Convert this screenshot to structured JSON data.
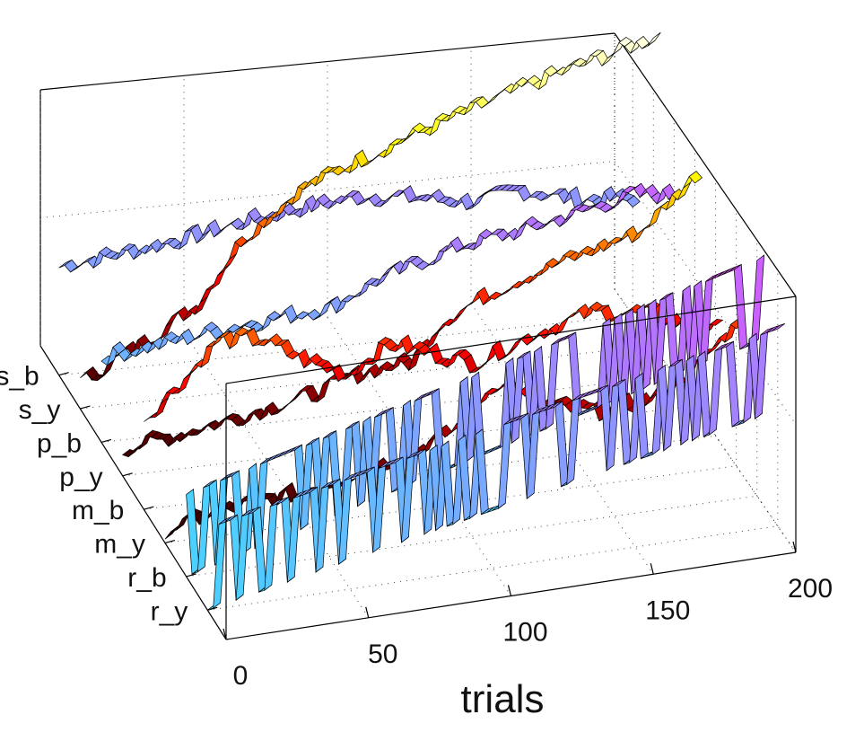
{
  "chart_data": {
    "type": "line",
    "style": "3d ribbon",
    "xlabel": "trials",
    "ylabel": "",
    "zlabel": "",
    "title": "",
    "xlim": [
      0,
      200
    ],
    "zlim": [
      0,
      1
    ],
    "grid": true,
    "x_ticks": [
      0,
      50,
      100,
      150,
      200
    ],
    "categories": [
      "s_b",
      "s_y",
      "p_b",
      "p_y",
      "m_b",
      "m_y",
      "r_b",
      "r_y"
    ],
    "colormap": "hot (low dark red → high pale yellow) and cool (low cyan → high magenta)",
    "series": [
      {
        "cmap": "cool",
        "points": [
          [
            0,
            0.42
          ],
          [
            25,
            0.45
          ],
          [
            45,
            0.48
          ],
          [
            65,
            0.52
          ],
          [
            85,
            0.55
          ],
          [
            105,
            0.57
          ],
          [
            125,
            0.54
          ],
          [
            145,
            0.5
          ],
          [
            160,
            0.53
          ],
          [
            180,
            0.47
          ],
          [
            200,
            0.45
          ]
        ]
      },
      {
        "cmap": "hot",
        "points": [
          [
            0,
            0.1
          ],
          [
            20,
            0.22
          ],
          [
            40,
            0.35
          ],
          [
            55,
            0.58
          ],
          [
            75,
            0.75
          ],
          [
            95,
            0.84
          ],
          [
            115,
            0.92
          ],
          [
            135,
            0.99
          ],
          [
            160,
            1.08
          ],
          [
            180,
            1.14
          ],
          [
            200,
            1.2
          ]
        ]
      },
      {
        "cmap": "cool",
        "points": [
          [
            0,
            0.33
          ],
          [
            20,
            0.35
          ],
          [
            40,
            0.38
          ],
          [
            60,
            0.4
          ],
          [
            80,
            0.42
          ],
          [
            95,
            0.5
          ],
          [
            110,
            0.55
          ],
          [
            125,
            0.6
          ],
          [
            140,
            0.62
          ],
          [
            160,
            0.66
          ],
          [
            185,
            0.72
          ],
          [
            200,
            0.7
          ]
        ]
      },
      {
        "cmap": "hot",
        "points": [
          [
            0,
            0.1
          ],
          [
            20,
            0.13
          ],
          [
            45,
            0.18
          ],
          [
            65,
            0.22
          ],
          [
            85,
            0.29
          ],
          [
            100,
            0.3
          ],
          [
            110,
            0.44
          ],
          [
            125,
            0.52
          ],
          [
            140,
            0.58
          ],
          [
            160,
            0.64
          ],
          [
            180,
            0.7
          ],
          [
            200,
            0.9
          ]
        ]
      },
      {
        "cmap": "hot",
        "points": [
          [
            0,
            0.35
          ],
          [
            15,
            0.5
          ],
          [
            25,
            0.62
          ],
          [
            40,
            0.6
          ],
          [
            55,
            0.5
          ],
          [
            70,
            0.42
          ],
          [
            85,
            0.52
          ],
          [
            100,
            0.46
          ],
          [
            115,
            0.4
          ],
          [
            135,
            0.48
          ],
          [
            155,
            0.54
          ],
          [
            175,
            0.51
          ],
          [
            190,
            0.44
          ],
          [
            200,
            0.4
          ]
        ]
      },
      {
        "cmap": "hot",
        "points": [
          [
            0,
            0.05
          ],
          [
            25,
            0.1
          ],
          [
            45,
            0.12
          ],
          [
            65,
            0.16
          ],
          [
            85,
            0.22
          ],
          [
            100,
            0.28
          ],
          [
            115,
            0.45
          ],
          [
            130,
            0.34
          ],
          [
            150,
            0.28
          ],
          [
            170,
            0.3
          ],
          [
            185,
            0.4
          ],
          [
            200,
            0.56
          ]
        ]
      },
      {
        "cmap": "cool",
        "binary": true,
        "points": [
          [
            0,
            0.0
          ],
          [
            200,
            0.6
          ]
        ]
      },
      {
        "cmap": "cool",
        "binary": true,
        "points": [
          [
            0,
            0.0
          ],
          [
            200,
            0.45
          ]
        ]
      }
    ]
  }
}
